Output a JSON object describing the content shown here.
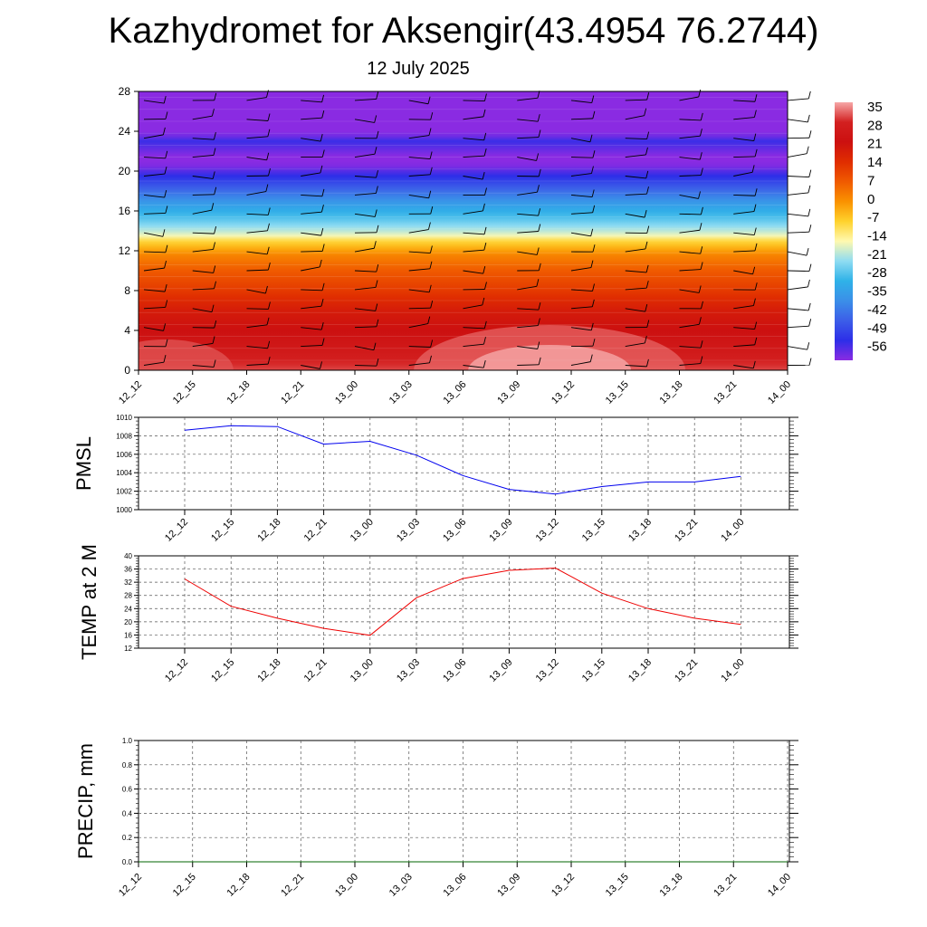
{
  "title": "Kazhydromet for Aksengir(43.4954 76.2744)",
  "subtitle": "12 July 2025",
  "chart_data": [
    {
      "type": "heatmap",
      "time_labels": [
        "12_12",
        "12_15",
        "12_18",
        "12_21",
        "13_00",
        "13_03",
        "13_06",
        "13_09",
        "13_12",
        "13_15",
        "13_18",
        "13_21",
        "14_00"
      ],
      "y_ticks": [
        0,
        4,
        8,
        12,
        16,
        20,
        24,
        28
      ],
      "ylim": [
        0,
        28
      ],
      "colorbar": {
        "labels": [
          "35",
          "28",
          "21",
          "14",
          "7",
          "0",
          "-7",
          "-14",
          "-21",
          "-28",
          "-35",
          "-42",
          "-49",
          "-56"
        ],
        "colors": [
          "#f6a7a7",
          "#d32020",
          "#cc1010",
          "#e02d00",
          "#f05a00",
          "#fa9200",
          "#ffd22c",
          "#fff9b0",
          "#8fdcf2",
          "#2fb2e8",
          "#3b8fe8",
          "#3c5ee8",
          "#2d2ee8",
          "#8a2be2"
        ]
      },
      "temperature_profile": [
        {
          "h": 0,
          "t": 30
        },
        {
          "h": 2,
          "t": 25
        },
        {
          "h": 4,
          "t": 21
        },
        {
          "h": 6,
          "t": 18
        },
        {
          "h": 8,
          "t": 12
        },
        {
          "h": 10,
          "t": 7
        },
        {
          "h": 11.5,
          "t": 2
        },
        {
          "h": 13,
          "t": -8
        },
        {
          "h": 13.6,
          "t": -16
        },
        {
          "h": 15,
          "t": -24
        },
        {
          "h": 17,
          "t": -34
        },
        {
          "h": 19,
          "t": -46
        },
        {
          "h": 21,
          "t": -58
        },
        {
          "h": 23,
          "t": -50
        },
        {
          "h": 24.5,
          "t": -62
        },
        {
          "h": 28,
          "t": -62
        }
      ]
    },
    {
      "type": "line",
      "ylabel": "PMSL",
      "x": [
        "12_12",
        "12_15",
        "12_18",
        "12_21",
        "13_00",
        "13_03",
        "13_06",
        "13_09",
        "13_12",
        "13_15",
        "13_18",
        "13_21",
        "14_00"
      ],
      "y_ticks": [
        "1000",
        "1002",
        "1004",
        "1006",
        "1008",
        "1010"
      ],
      "ylim": [
        1000,
        1010
      ],
      "values": [
        1008.6,
        1009.1,
        1009.0,
        1007.1,
        1007.4,
        1005.9,
        1003.7,
        1002.2,
        1001.7,
        1002.5,
        1003.0,
        1003.0,
        1003.6
      ],
      "color": "#0000ee"
    },
    {
      "type": "line",
      "ylabel": "TEMP at 2 M",
      "x": [
        "12_12",
        "12_15",
        "12_18",
        "12_21",
        "13_00",
        "13_03",
        "13_06",
        "13_09",
        "13_12",
        "13_15",
        "13_18",
        "13_21",
        "14_00"
      ],
      "y_ticks": [
        "12",
        "16",
        "20",
        "24",
        "28",
        "32",
        "36",
        "40"
      ],
      "ylim": [
        12,
        40
      ],
      "values": [
        33.0,
        24.7,
        21.1,
        18.0,
        15.9,
        27.3,
        33.1,
        35.6,
        36.3,
        28.7,
        24.0,
        21.1,
        19.2
      ],
      "color": "#ee0000"
    },
    {
      "type": "line",
      "ylabel": "PRECIP, mm",
      "x": [
        "12_12",
        "12_15",
        "12_18",
        "12_21",
        "13_00",
        "13_03",
        "13_06",
        "13_09",
        "13_12",
        "13_15",
        "13_18",
        "13_21",
        "14_00"
      ],
      "y_ticks": [
        "0.0",
        "0.2",
        "0.4",
        "0.6",
        "0.8",
        "1.0"
      ],
      "ylim": [
        0,
        1
      ],
      "values": [
        0,
        0,
        0,
        0,
        0,
        0,
        0,
        0,
        0,
        0,
        0,
        0,
        0
      ],
      "color": "#006400"
    }
  ]
}
